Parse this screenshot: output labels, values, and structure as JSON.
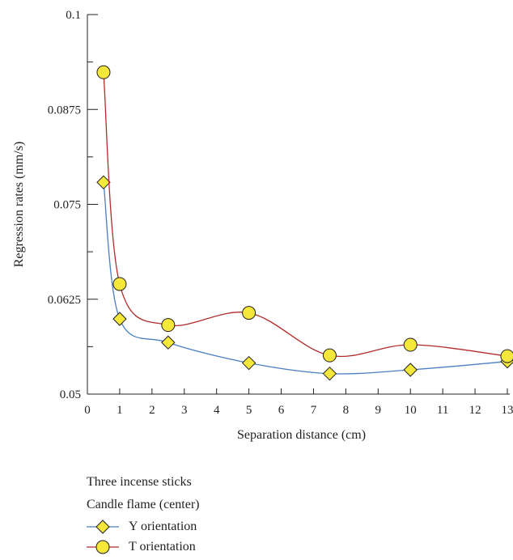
{
  "chart_data": {
    "type": "line",
    "xlabel": "Separation distance (cm)",
    "ylabel": "Regression rates (mm/s)",
    "xlim": [
      0,
      13
    ],
    "ylim": [
      0.05,
      0.1
    ],
    "x_ticks": [
      "0",
      "1",
      "2",
      "3",
      "4",
      "5",
      "6",
      "7",
      "8",
      "9",
      "10",
      "11",
      "12",
      "13"
    ],
    "y_ticks": [
      "0.05",
      "0.0625",
      "0.075",
      "0.0875",
      "0.1"
    ],
    "grid": false,
    "legend_title": [
      "Three incense sticks",
      "Candle flame (center)"
    ],
    "legend_position": "bottom-left",
    "series": [
      {
        "name": "Y orientation",
        "marker": "diamond",
        "line_color": "#4a7fc1",
        "marker_color": "#f5e83a",
        "x": [
          0.5,
          1,
          2.5,
          5,
          7.5,
          10,
          13
        ],
        "y": [
          0.0779,
          0.0599,
          0.0568,
          0.0541,
          0.0527,
          0.0532,
          0.0543
        ]
      },
      {
        "name": "T orientation",
        "marker": "circle",
        "line_color": "#b22a2a",
        "marker_color": "#f5e83a",
        "x": [
          0.5,
          1,
          2.5,
          5,
          7.5,
          10,
          13
        ],
        "y": [
          0.0924,
          0.0645,
          0.0591,
          0.0607,
          0.0551,
          0.0565,
          0.055
        ]
      }
    ]
  }
}
